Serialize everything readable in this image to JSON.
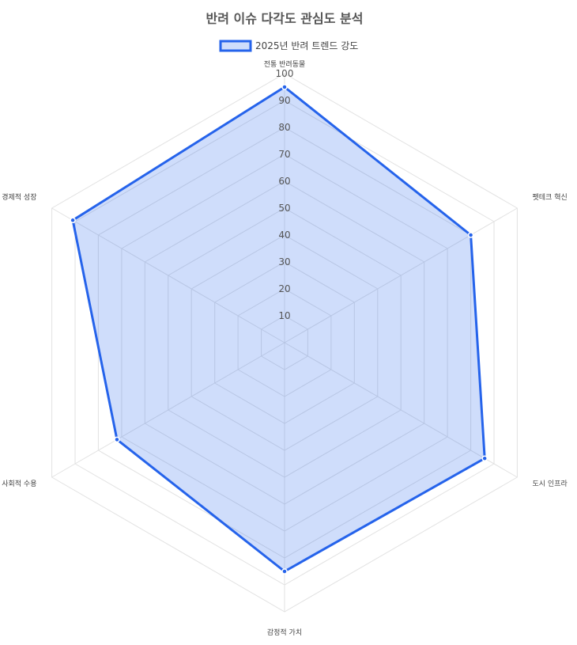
{
  "chart_data": {
    "type": "radar",
    "title": "반려 이슈 다각도 관심도 분석",
    "axes": [
      "전통 반려동물",
      "펫테크 혁신",
      "도시 인프라",
      "감정적 가치",
      "사회적 수용",
      "경제적 성장"
    ],
    "series": [
      {
        "name": "2025년 반려 트렌드 강도",
        "values": [
          95,
          80,
          86,
          85,
          72,
          91
        ]
      }
    ],
    "r_range": [
      0,
      100
    ],
    "r_ticks": [
      10,
      20,
      30,
      40,
      50,
      60,
      70,
      80,
      90,
      100
    ],
    "grid": true,
    "legend_position": "top",
    "colors": {
      "series": "#2563eb",
      "grid": "#e2e2e2"
    }
  }
}
